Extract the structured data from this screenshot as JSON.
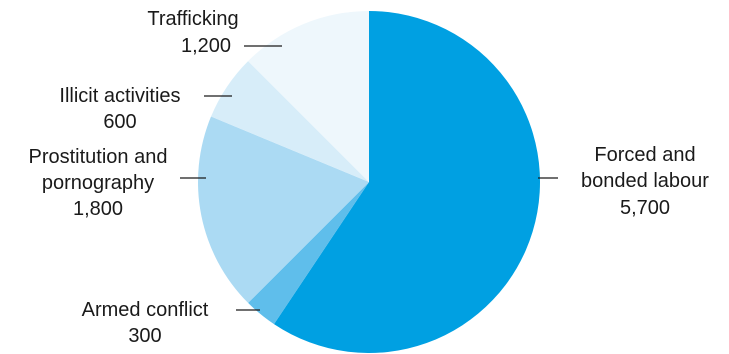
{
  "chart_data": {
    "type": "pie",
    "start_angle": "12 o'clock",
    "direction": "clockwise",
    "slices": [
      {
        "category_lines": [
          "Forced and",
          "bonded labour"
        ],
        "value_label": "5,700",
        "value": 5700,
        "color": "#00A0E2"
      },
      {
        "category_lines": [
          "Armed conflict"
        ],
        "value_label": "300",
        "value": 300,
        "color": "#5FBEEB"
      },
      {
        "category_lines": [
          "Prostitution and",
          "pornography"
        ],
        "value_label": "1,800",
        "value": 1800,
        "color": "#ABDAF3"
      },
      {
        "category_lines": [
          "Illicit activities"
        ],
        "value_label": "600",
        "value": 600,
        "color": "#D7EDF9"
      },
      {
        "category_lines": [
          "Trafficking"
        ],
        "value_label": "1,200",
        "value": 1200,
        "color": "#EEF7FC"
      }
    ]
  }
}
